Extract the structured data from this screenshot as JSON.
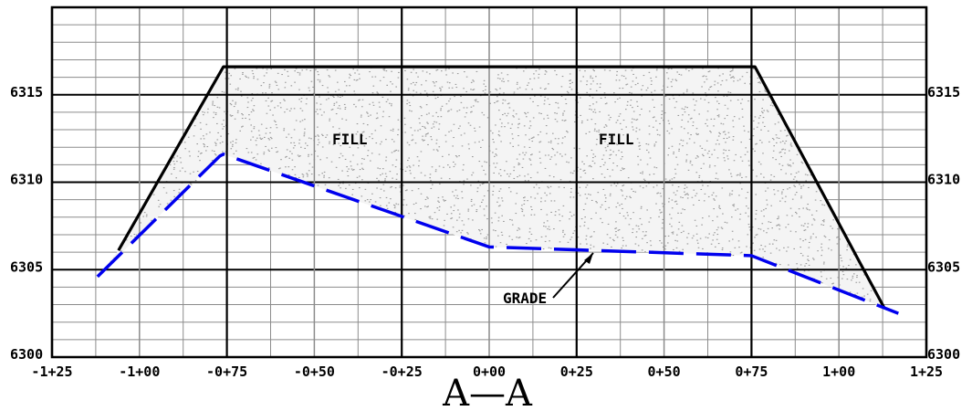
{
  "title": "A—A",
  "labels": {
    "fill_left": "FILL",
    "fill_right": "FILL",
    "grade": "GRADE"
  },
  "colors": {
    "grade_line": "#0000ee",
    "fill_section": "#000000",
    "grid_major": "#000000",
    "grid_minor": "#8c8c8c",
    "fill_dots": "#9a9a9a"
  },
  "chart_data": {
    "type": "cross-section",
    "title": "A—A",
    "x_tick_labels": [
      "-1+25",
      "-1+00",
      "-0+75",
      "-0+50",
      "-0+25",
      "0+00",
      "0+25",
      "0+50",
      "0+75",
      "1+00",
      "1+25"
    ],
    "x_tick_values": [
      -125,
      -100,
      -75,
      -50,
      -25,
      0,
      25,
      50,
      75,
      100,
      125
    ],
    "y_tick_labels": [
      "6300",
      "6305",
      "6310",
      "6315"
    ],
    "y_tick_values": [
      6300,
      6305,
      6310,
      6315
    ],
    "xlim": [
      -125,
      125
    ],
    "ylim": [
      6300,
      6320
    ],
    "grid": {
      "major_x_every": 25,
      "minor_x_every": 12.5,
      "major_y_every": 5,
      "minor_y_every": 1
    },
    "series": [
      {
        "name": "FILL",
        "style": "solid",
        "x": [
          -106,
          -76,
          76,
          106,
          113
        ],
        "y": [
          6306.1,
          6316.6,
          6316.6,
          6305.4,
          6302.8
        ]
      },
      {
        "name": "GRADE",
        "style": "dashed",
        "x": [
          -112,
          -77,
          -76,
          0,
          30,
          75,
          117
        ],
        "y": [
          6304.6,
          6311.5,
          6311.6,
          6306.3,
          6306.1,
          6305.8,
          6302.5
        ]
      }
    ]
  }
}
